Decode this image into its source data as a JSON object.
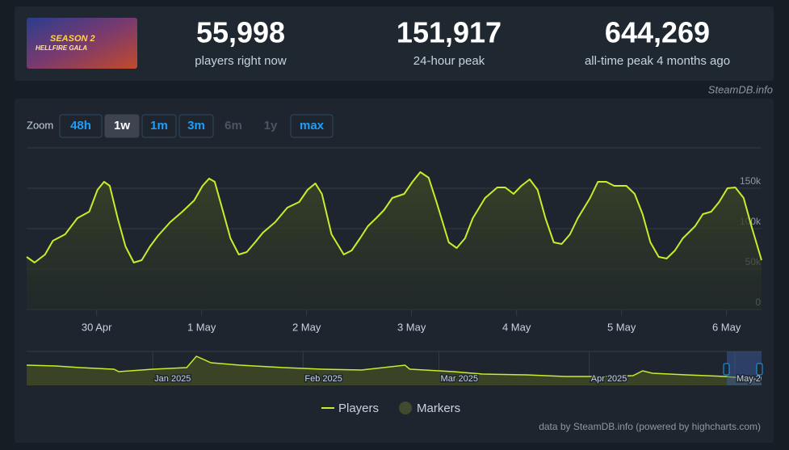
{
  "header_image": {
    "lines": [
      "SEASON 2",
      "HELLFIRE GALA"
    ]
  },
  "stats": [
    {
      "value": "55,998",
      "label": "players right now"
    },
    {
      "value": "151,917",
      "label": "24-hour peak"
    },
    {
      "value": "644,269",
      "label": "all-time peak 4 months ago"
    }
  ],
  "source": "SteamDB.info",
  "zoom": {
    "label": "Zoom",
    "buttons": [
      "48h",
      "1w",
      "1m",
      "3m",
      "6m",
      "1y",
      "max"
    ],
    "active": "1w",
    "disabled": [
      "6m",
      "1y"
    ]
  },
  "chart_data": {
    "type": "line",
    "x": [
      -16,
      -14.2,
      -11.8,
      -10,
      -7.2,
      -4.4,
      -1.7,
      0.2,
      1.7,
      3,
      4.8,
      6.6,
      8.5,
      10.3,
      12.2,
      14,
      16.8,
      19.6,
      22.3,
      24.2,
      25.7,
      27,
      28.8,
      30.6,
      32.5,
      34.3,
      36.2,
      38,
      40.8,
      43.6,
      46.3,
      48.2,
      50,
      51.5,
      53.7,
      56.5,
      58.3,
      60.2,
      62,
      63.9,
      65.7,
      67.6,
      70.3,
      72.2,
      74,
      75.9,
      77.7,
      80.5,
      82.3,
      84.2,
      86,
      88.8,
      91.6,
      93.4,
      95.3,
      97.1,
      99,
      100.8,
      102.6,
      104.5,
      106.3,
      108.2,
      110,
      112.8,
      114.6,
      116.5,
      118.3,
      121.1,
      123,
      124.8,
      126.6,
      128.5,
      130.3,
      132.2,
      134,
      136.8,
      138.6,
      140.5,
      142.3,
      144.2,
      146,
      147.9,
      149.7,
      152
    ],
    "series": [
      {
        "name": "Players",
        "color": "#c6ee2c",
        "values": [
          65000,
          58000,
          68000,
          85000,
          93000,
          113000,
          121000,
          148000,
          158000,
          153000,
          113000,
          78000,
          58000,
          61000,
          78000,
          91000,
          108000,
          121000,
          135000,
          153000,
          162000,
          158000,
          123000,
          88000,
          68000,
          71000,
          83000,
          95000,
          108000,
          126000,
          133000,
          148000,
          156000,
          143000,
          93000,
          68000,
          73000,
          88000,
          103000,
          113000,
          123000,
          138000,
          143000,
          158000,
          170000,
          163000,
          133000,
          83000,
          76000,
          88000,
          113000,
          138000,
          151000,
          151000,
          143000,
          153000,
          161000,
          148000,
          113000,
          83000,
          81000,
          93000,
          113000,
          138000,
          158000,
          158000,
          153000,
          153000,
          143000,
          118000,
          83000,
          65000,
          63000,
          73000,
          88000,
          103000,
          118000,
          121000,
          133000,
          150000,
          151000,
          138000,
          103000,
          61000
        ]
      }
    ],
    "markers": {
      "name": "Markers",
      "color": "#3f4a2e"
    },
    "xlim": [
      -16,
      152
    ],
    "xticks": [
      {
        "value": 0,
        "label": "30 Apr"
      },
      {
        "value": 24,
        "label": "1 May"
      },
      {
        "value": 48,
        "label": "2 May"
      },
      {
        "value": 72,
        "label": "3 May"
      },
      {
        "value": 96,
        "label": "4 May"
      },
      {
        "value": 120,
        "label": "5 May"
      },
      {
        "value": 144,
        "label": "6 May"
      }
    ],
    "ylim": [
      0,
      200000
    ],
    "yticks": [
      {
        "value": 0,
        "label": "0"
      },
      {
        "value": 50000,
        "label": "50k"
      },
      {
        "value": 100000,
        "label": "100k"
      },
      {
        "value": 150000,
        "label": "150k"
      }
    ],
    "grid": true,
    "navigator": {
      "x": [
        -26,
        -20,
        -15,
        -8,
        -7,
        0,
        7,
        9,
        12,
        18,
        27,
        35,
        43,
        52,
        53,
        62,
        68,
        77,
        85,
        95,
        99,
        101,
        103,
        110,
        118,
        125.5
      ],
      "values": [
        438000,
        420000,
        385000,
        350000,
        298000,
        350000,
        385000,
        630000,
        490000,
        438000,
        385000,
        350000,
        333000,
        438000,
        350000,
        298000,
        245000,
        228000,
        193000,
        193000,
        210000,
        315000,
        263000,
        228000,
        193000,
        123000
      ],
      "xlim": [
        -26,
        125.5
      ],
      "ylim": [
        0,
        700000
      ],
      "xticks": [
        {
          "value": 0,
          "label": "Jan 2025"
        },
        {
          "value": 31,
          "label": "Feb 2025"
        },
        {
          "value": 59,
          "label": "Mar 2025"
        },
        {
          "value": 90,
          "label": "Apr 2025"
        },
        {
          "value": 120,
          "label": "May 2025"
        }
      ]
    },
    "credits": "data by SteamDB.info (powered by highcharts.com)"
  }
}
